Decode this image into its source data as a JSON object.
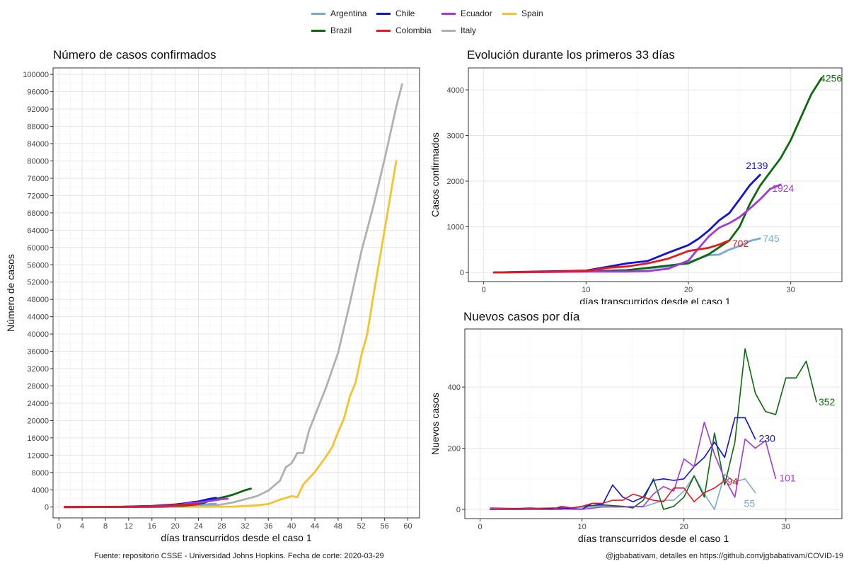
{
  "colors": {
    "Argentina": "#76a9da",
    "Brazil": "#0b6b0b",
    "Chile": "#1010e0",
    "Colombia": "#e51b1b",
    "Ecuador": "#a338dc",
    "Italy": "#b0b0b0",
    "Spain": "#f7c22a"
  },
  "legend": [
    "Argentina",
    "Chile",
    "Ecuador",
    "Spain",
    "Brazil",
    "Colombia",
    "Italy"
  ],
  "captions": {
    "source": "Fuente: repositorio CSSE - Universidad Johns Hopkins. Fecha de corte: 2020-03-29",
    "credit": "@jgbabativam, detalles en https://github.com/jgbabativam/COVID-19"
  },
  "chart_data": [
    {
      "type": "line",
      "title": "Número de casos confirmados",
      "xlabel": "días transcurridos desde el caso 1",
      "ylabel": "Número de casos",
      "xlim": [
        -1,
        62
      ],
      "ylim": [
        -2500,
        101500
      ],
      "xticks": [
        0,
        4,
        8,
        12,
        16,
        20,
        24,
        28,
        32,
        36,
        40,
        44,
        48,
        52,
        56,
        60
      ],
      "yticks": [
        0,
        4000,
        8000,
        12000,
        16000,
        20000,
        24000,
        28000,
        32000,
        36000,
        40000,
        44000,
        48000,
        52000,
        56000,
        60000,
        64000,
        68000,
        72000,
        76000,
        80000,
        84000,
        88000,
        92000,
        96000,
        100000
      ],
      "grid": true,
      "series": [
        {
          "name": "Italy",
          "x": [
            1,
            25,
            28,
            30,
            32,
            34,
            36,
            38,
            39,
            40,
            41,
            42,
            43,
            44,
            46,
            48,
            50,
            52,
            54,
            56,
            58,
            59
          ],
          "y": [
            0,
            200,
            600,
            1100,
            1800,
            2500,
            3800,
            6100,
            9200,
            10100,
            12500,
            12500,
            17700,
            21100,
            27900,
            35700,
            47000,
            59100,
            69200,
            80500,
            92500,
            97700
          ]
        },
        {
          "name": "Spain",
          "x": [
            1,
            30,
            34,
            36,
            38,
            40,
            41,
            42,
            44,
            46,
            47,
            48,
            49,
            50,
            51,
            52,
            53,
            54,
            56,
            58
          ],
          "y": [
            0,
            100,
            400,
            700,
            1700,
            2500,
            2300,
            5200,
            8100,
            11800,
            13900,
            17400,
            20400,
            25400,
            28800,
            35100,
            39900,
            48300,
            64100,
            80000
          ]
        },
        {
          "name": "Argentina",
          "x": [
            1,
            10,
            14,
            16,
            18,
            20,
            21,
            22,
            23,
            24,
            25,
            26,
            27
          ],
          "y": [
            0,
            20,
            50,
            90,
            128,
            230,
            300,
            380,
            390,
            500,
            580,
            690,
            745
          ]
        },
        {
          "name": "Brazil",
          "x": [
            1,
            10,
            14,
            16,
            18,
            20,
            22,
            24,
            25,
            26,
            27,
            28,
            29,
            30,
            31,
            32,
            33
          ],
          "y": [
            0,
            30,
            50,
            100,
            150,
            200,
            400,
            700,
            1000,
            1500,
            1900,
            2200,
            2500,
            2900,
            3400,
            3900,
            4256
          ]
        },
        {
          "name": "Chile",
          "x": [
            1,
            10,
            14,
            16,
            18,
            20,
            21,
            22,
            23,
            24,
            25,
            26,
            27
          ],
          "y": [
            0,
            40,
            200,
            250,
            430,
            600,
            740,
            920,
            1140,
            1300,
            1600,
            1910,
            2139
          ]
        },
        {
          "name": "Ecuador",
          "x": [
            1,
            10,
            14,
            16,
            18,
            20,
            21,
            22,
            23,
            24,
            25,
            26,
            27,
            28,
            29
          ],
          "y": [
            0,
            20,
            20,
            30,
            80,
            260,
            530,
            790,
            980,
            1080,
            1210,
            1400,
            1600,
            1830,
            1924
          ]
        },
        {
          "name": "Colombia",
          "x": [
            1,
            10,
            12,
            14,
            16,
            18,
            20,
            22,
            23,
            24
          ],
          "y": [
            0,
            30,
            100,
            130,
            200,
            300,
            470,
            540,
            610,
            702
          ]
        }
      ]
    },
    {
      "type": "line",
      "title": "Evolución durante los primeros 33 días",
      "xlabel": "días transcurridos desde el caso 1",
      "ylabel": "Casos confirmados",
      "xlim": [
        -1.5,
        35
      ],
      "ylim": [
        -200,
        4480
      ],
      "xticks": [
        0,
        10,
        20,
        30
      ],
      "yticks": [
        0,
        1000,
        2000,
        3000,
        4000
      ],
      "grid": true,
      "end_labels": {
        "Brazil": "4256",
        "Chile": "2139",
        "Ecuador": "1924",
        "Argentina": "745",
        "Colombia": "702"
      },
      "series": [
        {
          "name": "Argentina",
          "x": [
            1,
            10,
            14,
            16,
            18,
            20,
            21,
            22,
            23,
            24,
            25,
            26,
            27
          ],
          "y": [
            0,
            20,
            50,
            90,
            128,
            230,
            300,
            380,
            390,
            500,
            580,
            690,
            745
          ]
        },
        {
          "name": "Brazil",
          "x": [
            1,
            10,
            14,
            16,
            18,
            20,
            22,
            24,
            25,
            26,
            27,
            28,
            29,
            30,
            31,
            32,
            33
          ],
          "y": [
            0,
            30,
            50,
            100,
            150,
            200,
            400,
            700,
            1000,
            1500,
            1900,
            2200,
            2500,
            2900,
            3400,
            3900,
            4256
          ]
        },
        {
          "name": "Chile",
          "x": [
            1,
            10,
            14,
            16,
            18,
            20,
            21,
            22,
            23,
            24,
            25,
            26,
            27
          ],
          "y": [
            0,
            40,
            200,
            250,
            430,
            600,
            740,
            920,
            1140,
            1300,
            1600,
            1910,
            2139
          ]
        },
        {
          "name": "Ecuador",
          "x": [
            1,
            10,
            14,
            16,
            18,
            20,
            21,
            22,
            23,
            24,
            25,
            26,
            27,
            28,
            29
          ],
          "y": [
            0,
            20,
            20,
            30,
            80,
            260,
            530,
            790,
            980,
            1080,
            1210,
            1400,
            1600,
            1830,
            1924
          ]
        },
        {
          "name": "Colombia",
          "x": [
            1,
            10,
            12,
            14,
            16,
            18,
            20,
            22,
            23,
            24
          ],
          "y": [
            0,
            30,
            100,
            130,
            200,
            300,
            470,
            540,
            610,
            702
          ]
        }
      ]
    },
    {
      "type": "line",
      "title": "Nuevos casos por día",
      "xlabel": "días transcurridos desde el caso 1",
      "ylabel": "Nuevos casos",
      "xlim": [
        -1.5,
        35.5
      ],
      "ylim": [
        -30,
        590
      ],
      "xticks": [
        0,
        10,
        20,
        30
      ],
      "yticks": [
        0,
        200,
        400
      ],
      "grid": true,
      "end_labels": {
        "Brazil": "352",
        "Chile": "230",
        "Ecuador": "101",
        "Argentina": "55",
        "Colombia": "94"
      },
      "series": [
        {
          "name": "Argentina",
          "x": [
            1,
            5,
            10,
            12,
            14,
            16,
            18,
            19,
            20,
            21,
            22,
            23,
            24,
            25,
            26,
            27
          ],
          "y": [
            2,
            3,
            5,
            12,
            10,
            8,
            30,
            30,
            60,
            110,
            50,
            0,
            115,
            90,
            100,
            55
          ]
        },
        {
          "name": "Brazil",
          "x": [
            1,
            8,
            10,
            12,
            14,
            15,
            16,
            17,
            18,
            19,
            20,
            21,
            22,
            23,
            24,
            25,
            26,
            27,
            28,
            29,
            30,
            31,
            32,
            33
          ],
          "y": [
            0,
            0,
            10,
            15,
            10,
            5,
            30,
            100,
            0,
            10,
            40,
            110,
            40,
            250,
            80,
            220,
            525,
            380,
            320,
            310,
            430,
            430,
            485,
            352
          ]
        },
        {
          "name": "Chile",
          "x": [
            1,
            8,
            10,
            11,
            12,
            13,
            14,
            15,
            16,
            17,
            18,
            19,
            20,
            21,
            22,
            23,
            24,
            25,
            26,
            27
          ],
          "y": [
            0,
            5,
            0,
            20,
            15,
            80,
            40,
            25,
            40,
            95,
            100,
            95,
            100,
            140,
            170,
            220,
            170,
            300,
            300,
            230
          ]
        },
        {
          "name": "Ecuador",
          "x": [
            1,
            5,
            10,
            12,
            14,
            16,
            17,
            18,
            19,
            20,
            21,
            22,
            23,
            24,
            25,
            26,
            27,
            28,
            29
          ],
          "y": [
            5,
            2,
            0,
            8,
            8,
            10,
            50,
            75,
            60,
            165,
            140,
            285,
            180,
            100,
            40,
            230,
            200,
            225,
            101
          ]
        },
        {
          "name": "Colombia",
          "x": [
            1,
            5,
            7,
            8,
            9,
            10,
            11,
            12,
            13,
            14,
            15,
            16,
            17,
            18,
            19,
            20,
            21,
            22,
            23,
            24
          ],
          "y": [
            0,
            5,
            0,
            10,
            5,
            10,
            20,
            20,
            30,
            30,
            50,
            40,
            30,
            25,
            70,
            70,
            25,
            55,
            70,
            94
          ]
        }
      ]
    }
  ]
}
